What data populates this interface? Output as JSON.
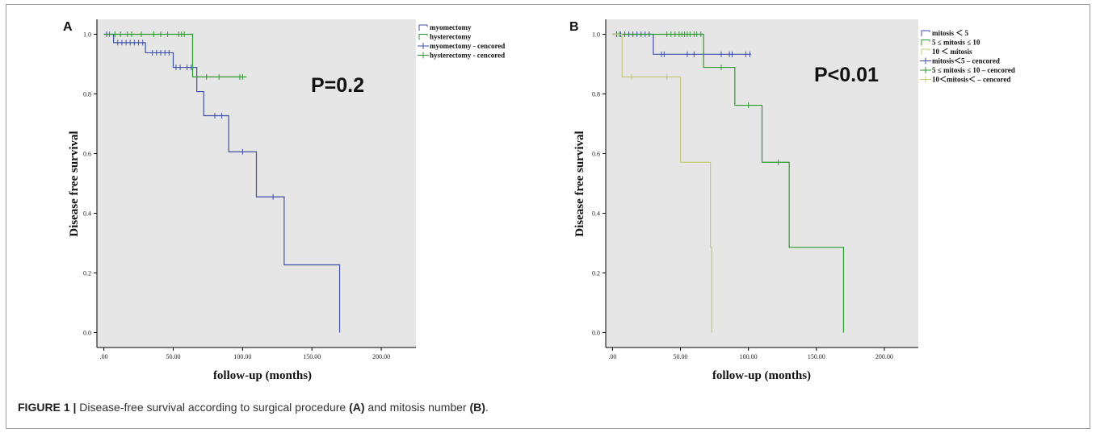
{
  "caption": {
    "figure_label": "FIGURE 1 |",
    "text_1": " Disease-free survival according to surgical procedure ",
    "bold_1": "(A)",
    "text_2": " and mitosis number ",
    "bold_2": "(B)",
    "text_3": "."
  },
  "colors": {
    "plot_bg": "#e6e6e6",
    "blue": "#3d4fa8",
    "green": "#2f9a2f",
    "tan": "#c8c87a"
  },
  "chart_data": [
    {
      "type": "line",
      "panel_label": "A",
      "annotation": "P=0.2",
      "xlabel": "follow-up (months)",
      "ylabel": "Disease free survival",
      "xlim": [
        -5,
        225
      ],
      "ylim": [
        -0.05,
        1.05
      ],
      "xticks": [
        ".00",
        "50.00",
        "100.00",
        "150.00",
        "200.00"
      ],
      "xtick_values": [
        0,
        50,
        100,
        150,
        200
      ],
      "yticks": [
        "0.0",
        "0.2",
        "0.4",
        "0.6",
        "0.8",
        "1.0"
      ],
      "ytick_values": [
        0,
        0.2,
        0.4,
        0.6,
        0.8,
        1.0
      ],
      "legend": [
        {
          "label": "myomectomy",
          "kind": "line",
          "color": "blue"
        },
        {
          "label": "hysterectomy",
          "kind": "line",
          "color": "green"
        },
        {
          "label": "myomectomy - cencored",
          "kind": "cross",
          "color": "blue"
        },
        {
          "label": "hysterectomy - cencored",
          "kind": "cross",
          "color": "green"
        }
      ],
      "series": [
        {
          "name": "myomectomy",
          "color": "blue",
          "steps": [
            [
              0,
              1.0
            ],
            [
              7,
              0.972
            ],
            [
              30,
              0.938
            ],
            [
              50,
              0.889
            ],
            [
              67,
              0.808
            ],
            [
              72,
              0.727
            ],
            [
              90,
              0.606
            ],
            [
              110,
              0.455
            ],
            [
              130,
              0.227
            ],
            [
              170,
              0.0
            ]
          ],
          "end_x": 170,
          "censored": [
            [
              2,
              1.0
            ],
            [
              10,
              0.972
            ],
            [
              13,
              0.972
            ],
            [
              16,
              0.972
            ],
            [
              19,
              0.972
            ],
            [
              22,
              0.972
            ],
            [
              25,
              0.972
            ],
            [
              28,
              0.972
            ],
            [
              35,
              0.938
            ],
            [
              38,
              0.938
            ],
            [
              41,
              0.938
            ],
            [
              44,
              0.938
            ],
            [
              47,
              0.938
            ],
            [
              52,
              0.889
            ],
            [
              55,
              0.889
            ],
            [
              60,
              0.889
            ],
            [
              63,
              0.889
            ],
            [
              80,
              0.727
            ],
            [
              85,
              0.727
            ],
            [
              100,
              0.606
            ],
            [
              122,
              0.455
            ]
          ]
        },
        {
          "name": "hysterectomy",
          "color": "green",
          "steps": [
            [
              0,
              1.0
            ],
            [
              64,
              0.857
            ]
          ],
          "end_x": 103,
          "censored": [
            [
              4,
              1.0
            ],
            [
              8,
              1.0
            ],
            [
              12,
              1.0
            ],
            [
              17,
              1.0
            ],
            [
              20,
              1.0
            ],
            [
              27,
              1.0
            ],
            [
              36,
              1.0
            ],
            [
              41,
              1.0
            ],
            [
              46,
              1.0
            ],
            [
              54,
              1.0
            ],
            [
              56,
              1.0
            ],
            [
              58,
              1.0
            ],
            [
              74,
              0.857
            ],
            [
              83,
              0.857
            ],
            [
              98,
              0.857
            ],
            [
              100,
              0.857
            ]
          ]
        }
      ]
    },
    {
      "type": "line",
      "panel_label": "B",
      "annotation": "P<0.01",
      "xlabel": "follow-up (months)",
      "ylabel": "Disease free survival",
      "xlim": [
        -5,
        225
      ],
      "ylim": [
        -0.05,
        1.05
      ],
      "xticks": [
        ".00",
        "50.00",
        "100.00",
        "150.00",
        "200.00"
      ],
      "xtick_values": [
        0,
        50,
        100,
        150,
        200
      ],
      "yticks": [
        "0.0",
        "0.2",
        "0.4",
        "0.6",
        "0.8",
        "1.0"
      ],
      "ytick_values": [
        0,
        0.2,
        0.4,
        0.6,
        0.8,
        1.0
      ],
      "legend": [
        {
          "label": "mitosis ＜ 5",
          "kind": "line",
          "color": "blue"
        },
        {
          "label": "5 ≤ mitosis ≤ 10",
          "kind": "line",
          "color": "green"
        },
        {
          "label": "10 ＜ mitosis",
          "kind": "line",
          "color": "tan"
        },
        {
          "label": "mitosis＜5 – cencored",
          "kind": "cross",
          "color": "blue"
        },
        {
          "label": "5 ≤ mitosis ≤ 10 – cencored",
          "kind": "cross",
          "color": "green"
        },
        {
          "label": "10＜mitosis＜ – cencored",
          "kind": "cross",
          "color": "tan"
        }
      ],
      "series": [
        {
          "name": "mitosis ＜ 5",
          "color": "blue",
          "steps": [
            [
              0,
              1.0
            ],
            [
              30,
              0.933
            ]
          ],
          "end_x": 102,
          "censored": [
            [
              3,
              1.0
            ],
            [
              6,
              1.0
            ],
            [
              9,
              1.0
            ],
            [
              12,
              1.0
            ],
            [
              15,
              1.0
            ],
            [
              18,
              1.0
            ],
            [
              21,
              1.0
            ],
            [
              24,
              1.0
            ],
            [
              27,
              1.0
            ],
            [
              36,
              0.933
            ],
            [
              38,
              0.933
            ],
            [
              55,
              0.933
            ],
            [
              60,
              0.933
            ],
            [
              67,
              0.933
            ],
            [
              80,
              0.933
            ],
            [
              86,
              0.933
            ],
            [
              88,
              0.933
            ],
            [
              98,
              0.933
            ],
            [
              101,
              0.933
            ]
          ]
        },
        {
          "name": "5 ≤ mitosis ≤ 10",
          "color": "green",
          "steps": [
            [
              0,
              1.0
            ],
            [
              67,
              0.889
            ],
            [
              90,
              0.762
            ],
            [
              110,
              0.571
            ],
            [
              130,
              0.286
            ],
            [
              170,
              0.0
            ]
          ],
          "end_x": 170,
          "censored": [
            [
              5,
              1.0
            ],
            [
              40,
              1.0
            ],
            [
              43,
              1.0
            ],
            [
              46,
              1.0
            ],
            [
              49,
              1.0
            ],
            [
              51,
              1.0
            ],
            [
              53,
              1.0
            ],
            [
              55,
              1.0
            ],
            [
              57,
              1.0
            ],
            [
              60,
              1.0
            ],
            [
              62,
              1.0
            ],
            [
              65,
              1.0
            ],
            [
              80,
              0.889
            ],
            [
              100,
              0.762
            ],
            [
              122,
              0.571
            ]
          ]
        },
        {
          "name": "10 ＜ mitosis",
          "color": "tan",
          "steps": [
            [
              0,
              1.0
            ],
            [
              7,
              0.857
            ],
            [
              50,
              0.571
            ],
            [
              72,
              0.286
            ],
            [
              73,
              0.0
            ]
          ],
          "end_x": 73,
          "censored": [
            [
              14,
              0.857
            ],
            [
              40,
              0.857
            ]
          ]
        }
      ]
    }
  ]
}
